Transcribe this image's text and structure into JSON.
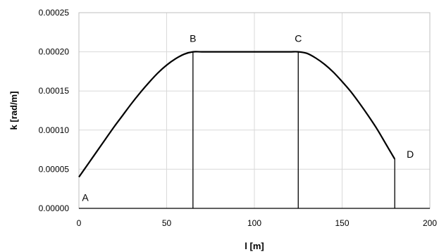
{
  "chart_data": {
    "type": "line",
    "xlabel": "l [m]",
    "ylabel": "k [rad/m]",
    "xlim": [
      0,
      200
    ],
    "ylim": [
      0,
      0.00025
    ],
    "x_ticks": [
      "0",
      "50",
      "100",
      "150",
      "200"
    ],
    "y_ticks": [
      "0.00000",
      "0.00005",
      "0.00010",
      "0.00015",
      "0.00020",
      "0.00025"
    ],
    "grid": true,
    "series": [
      {
        "x": [
          0,
          5,
          10,
          15,
          20,
          25,
          30,
          35,
          40,
          45,
          50,
          55,
          60,
          65,
          70,
          80,
          90,
          100,
          110,
          120,
          125,
          130,
          135,
          140,
          145,
          150,
          155,
          160,
          165,
          170,
          175,
          180
        ],
        "y": [
          4e-05,
          5.6e-05,
          7.2e-05,
          8.8e-05,
          0.000104,
          0.000119,
          0.000134,
          0.000148,
          0.000161,
          0.000173,
          0.000183,
          0.000191,
          0.000197,
          0.0002,
          0.0002,
          0.0002,
          0.0002,
          0.0002,
          0.0002,
          0.0002,
          0.0002,
          0.000198,
          0.000192,
          0.000184,
          0.000174,
          0.000162,
          0.000149,
          0.000134,
          0.000118,
          0.000101,
          8.2e-05,
          6.3e-05
        ]
      }
    ],
    "annotations": [
      {
        "text": "A",
        "x": 0,
        "y": 4e-05
      },
      {
        "text": "B",
        "x": 65,
        "y": 0.0002
      },
      {
        "text": "C",
        "x": 125,
        "y": 0.0002
      },
      {
        "text": "D",
        "x": 180,
        "y": 6.3e-05
      }
    ],
    "drop_lines_x": [
      65,
      125,
      180
    ]
  }
}
